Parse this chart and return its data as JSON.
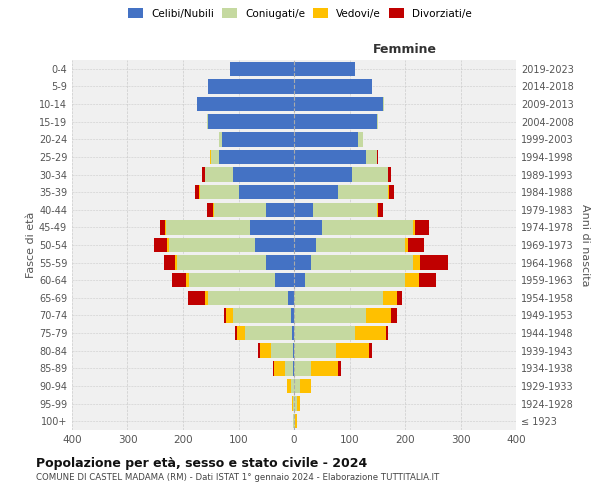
{
  "age_groups": [
    "100+",
    "95-99",
    "90-94",
    "85-89",
    "80-84",
    "75-79",
    "70-74",
    "65-69",
    "60-64",
    "55-59",
    "50-54",
    "45-49",
    "40-44",
    "35-39",
    "30-34",
    "25-29",
    "20-24",
    "15-19",
    "10-14",
    "5-9",
    "0-4"
  ],
  "birth_years": [
    "≤ 1923",
    "1924-1928",
    "1929-1933",
    "1934-1938",
    "1939-1943",
    "1944-1948",
    "1949-1953",
    "1954-1958",
    "1959-1963",
    "1964-1968",
    "1969-1973",
    "1974-1978",
    "1979-1983",
    "1984-1988",
    "1989-1993",
    "1994-1998",
    "1999-2003",
    "2004-2008",
    "2009-2013",
    "2014-2018",
    "2019-2023"
  ],
  "male_celibi": [
    0,
    0,
    0,
    1,
    2,
    3,
    5,
    10,
    35,
    50,
    70,
    80,
    50,
    100,
    110,
    135,
    130,
    155,
    175,
    155,
    115
  ],
  "male_coniugati": [
    1,
    2,
    5,
    15,
    40,
    85,
    105,
    145,
    155,
    160,
    155,
    150,
    95,
    70,
    50,
    15,
    5,
    2,
    0,
    0,
    0
  ],
  "male_vedovi": [
    0,
    2,
    8,
    20,
    20,
    15,
    12,
    6,
    5,
    4,
    3,
    2,
    1,
    1,
    0,
    1,
    0,
    0,
    0,
    0,
    0
  ],
  "male_divorziati": [
    0,
    0,
    0,
    2,
    3,
    3,
    5,
    30,
    25,
    20,
    25,
    10,
    10,
    8,
    5,
    1,
    0,
    0,
    0,
    0,
    0
  ],
  "female_celibi": [
    0,
    0,
    0,
    0,
    0,
    0,
    0,
    0,
    20,
    30,
    40,
    50,
    35,
    80,
    105,
    130,
    115,
    150,
    160,
    140,
    110
  ],
  "female_coniugati": [
    2,
    5,
    10,
    30,
    75,
    110,
    130,
    160,
    180,
    185,
    160,
    165,
    115,
    90,
    65,
    20,
    10,
    2,
    2,
    0,
    0
  ],
  "female_vedovi": [
    3,
    5,
    20,
    50,
    60,
    55,
    45,
    25,
    25,
    12,
    5,
    3,
    1,
    1,
    0,
    0,
    0,
    0,
    0,
    0,
    0
  ],
  "female_divorziati": [
    0,
    0,
    0,
    5,
    5,
    5,
    10,
    10,
    30,
    50,
    30,
    25,
    10,
    10,
    5,
    1,
    0,
    0,
    0,
    0,
    0
  ],
  "color_celibi": "#4472c4",
  "color_coniugati": "#c5d9a0",
  "color_vedovi": "#ffc000",
  "color_divorziati": "#c00000",
  "xlim": 400,
  "title_main": "Popolazione per età, sesso e stato civile - 2024",
  "title_sub": "COMUNE DI CASTEL MADAMA (RM) - Dati ISTAT 1° gennaio 2024 - Elaborazione TUTTITALIA.IT",
  "ylabel_left": "Fasce di età",
  "ylabel_right": "Anni di nascita",
  "xlabel_right": "Femmine",
  "bg_color": "#f0f0f0",
  "grid_color": "#cccccc"
}
